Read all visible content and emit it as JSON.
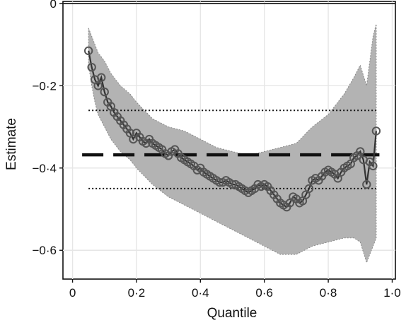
{
  "chart_data": {
    "type": "line",
    "title": "",
    "xlabel": "Quantile",
    "ylabel": "Estimate",
    "xlim": [
      -0.03,
      1.01
    ],
    "ylim": [
      -0.67,
      0.005
    ],
    "grid": true,
    "x_ticks": [
      0,
      0.2,
      0.4,
      0.6,
      0.8,
      1.0
    ],
    "x_tick_labels": [
      "0",
      "0·2",
      "0·4",
      "0·6",
      "0·8",
      "1·0"
    ],
    "y_ticks": [
      0,
      -0.2,
      -0.4,
      -0.6
    ],
    "y_tick_labels": [
      "0",
      "−0·2",
      "−0·4",
      "−0·6"
    ],
    "reference_lines": [
      {
        "kind": "zero",
        "y": 0,
        "style": "solid"
      },
      {
        "kind": "mean_estimate",
        "y": -0.368,
        "x_range": [
          0.03,
          0.96
        ],
        "style": "dashed"
      },
      {
        "kind": "mean_ci_upper",
        "y": -0.26,
        "x_range": [
          0.05,
          0.95
        ],
        "style": "dotted"
      },
      {
        "kind": "mean_ci_lower",
        "y": -0.45,
        "x_range": [
          0.05,
          0.95
        ],
        "style": "dotted"
      }
    ],
    "ci_band": {
      "x": [
        0.05,
        0.06,
        0.07,
        0.08,
        0.1,
        0.12,
        0.15,
        0.18,
        0.2,
        0.25,
        0.3,
        0.35,
        0.4,
        0.45,
        0.5,
        0.55,
        0.6,
        0.65,
        0.7,
        0.75,
        0.8,
        0.85,
        0.88,
        0.9,
        0.92,
        0.94,
        0.95
      ],
      "upper": [
        -0.06,
        -0.08,
        -0.1,
        -0.12,
        -0.14,
        -0.17,
        -0.2,
        -0.22,
        -0.24,
        -0.28,
        -0.3,
        -0.31,
        -0.33,
        -0.35,
        -0.36,
        -0.37,
        -0.36,
        -0.35,
        -0.34,
        -0.3,
        -0.27,
        -0.22,
        -0.18,
        -0.15,
        -0.2,
        -0.08,
        -0.05
      ],
      "lower": [
        -0.15,
        -0.2,
        -0.24,
        -0.27,
        -0.3,
        -0.33,
        -0.36,
        -0.38,
        -0.4,
        -0.44,
        -0.47,
        -0.49,
        -0.51,
        -0.53,
        -0.55,
        -0.57,
        -0.59,
        -0.61,
        -0.61,
        -0.59,
        -0.58,
        -0.57,
        -0.57,
        -0.58,
        -0.63,
        -0.59,
        -0.57
      ]
    },
    "series": [
      {
        "x": [
          0.05,
          0.06,
          0.07,
          0.08,
          0.09,
          0.1,
          0.11,
          0.12,
          0.13,
          0.14,
          0.15,
          0.16,
          0.17,
          0.18,
          0.19,
          0.2,
          0.21,
          0.22,
          0.23,
          0.24,
          0.25,
          0.26,
          0.27,
          0.28,
          0.29,
          0.3,
          0.31,
          0.32,
          0.33,
          0.34,
          0.35,
          0.36,
          0.37,
          0.38,
          0.39,
          0.4,
          0.41,
          0.42,
          0.43,
          0.44,
          0.45,
          0.46,
          0.47,
          0.48,
          0.49,
          0.5,
          0.51,
          0.52,
          0.53,
          0.54,
          0.55,
          0.56,
          0.57,
          0.58,
          0.59,
          0.6,
          0.61,
          0.62,
          0.63,
          0.64,
          0.65,
          0.66,
          0.67,
          0.68,
          0.69,
          0.7,
          0.71,
          0.72,
          0.73,
          0.74,
          0.75,
          0.76,
          0.77,
          0.78,
          0.79,
          0.8,
          0.81,
          0.82,
          0.83,
          0.84,
          0.85,
          0.86,
          0.87,
          0.88,
          0.89,
          0.9,
          0.91,
          0.92,
          0.93,
          0.94,
          0.95
        ],
        "values": [
          -0.115,
          -0.155,
          -0.185,
          -0.2,
          -0.18,
          -0.215,
          -0.24,
          -0.25,
          -0.265,
          -0.275,
          -0.285,
          -0.295,
          -0.305,
          -0.315,
          -0.33,
          -0.315,
          -0.325,
          -0.335,
          -0.34,
          -0.33,
          -0.34,
          -0.345,
          -0.35,
          -0.355,
          -0.365,
          -0.37,
          -0.36,
          -0.355,
          -0.365,
          -0.375,
          -0.38,
          -0.385,
          -0.39,
          -0.395,
          -0.405,
          -0.4,
          -0.41,
          -0.415,
          -0.42,
          -0.425,
          -0.43,
          -0.435,
          -0.435,
          -0.43,
          -0.435,
          -0.44,
          -0.44,
          -0.445,
          -0.45,
          -0.455,
          -0.46,
          -0.455,
          -0.45,
          -0.44,
          -0.445,
          -0.44,
          -0.445,
          -0.455,
          -0.465,
          -0.475,
          -0.485,
          -0.49,
          -0.495,
          -0.485,
          -0.47,
          -0.475,
          -0.485,
          -0.48,
          -0.465,
          -0.45,
          -0.43,
          -0.425,
          -0.43,
          -0.42,
          -0.41,
          -0.405,
          -0.41,
          -0.415,
          -0.425,
          -0.41,
          -0.4,
          -0.395,
          -0.39,
          -0.375,
          -0.37,
          -0.36,
          -0.38,
          -0.44,
          -0.385,
          -0.395,
          -0.31
        ]
      }
    ]
  },
  "colors": {
    "band": "#b3b3b3",
    "band_edge": "#8a8a8a",
    "grid": "#e6e6e6",
    "axis": "#111111",
    "series": "#333333",
    "marker": "#555555"
  }
}
